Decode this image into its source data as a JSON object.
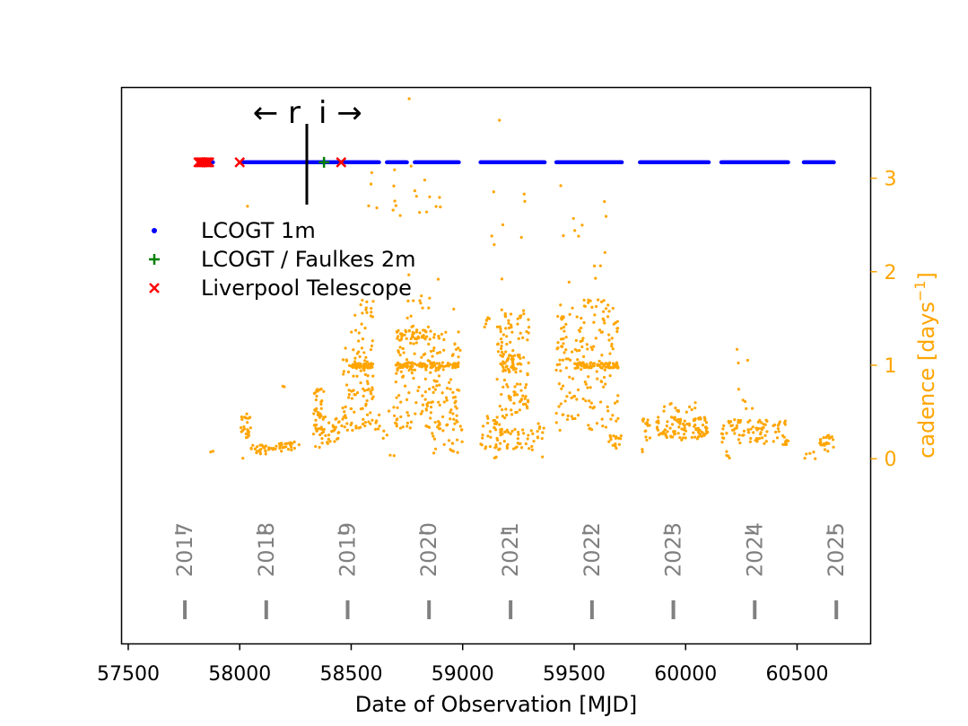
{
  "colors": {
    "lcogt_1m": "#0000ff",
    "faulkes_2m": "#008000",
    "liverpool": "#ff0000",
    "cadence": "#ffa500",
    "year": "#808080",
    "axis": "#000000"
  },
  "chart_data": {
    "type": "scatter",
    "xlabel": "Date of Observation [MJD]",
    "ylabel_right": "cadence [days",
    "ylabel_right_sup": "−1",
    "ylabel_right_end": "]",
    "xlim": [
      57470,
      60830
    ],
    "ylim_right": [
      -1.98,
      3.97
    ],
    "x_ticks": [
      57500,
      58000,
      58500,
      59000,
      59500,
      60000,
      60500
    ],
    "x_tick_labels": [
      "57500",
      "58000",
      "58500",
      "59000",
      "59500",
      "60000",
      "60500"
    ],
    "y_ticks_right": [
      0,
      1,
      2,
      3
    ],
    "y_tick_labels_right": [
      "0",
      "1",
      "2",
      "3"
    ],
    "legend": {
      "position": "center-left",
      "entries": [
        {
          "label": "LCOGT 1m",
          "marker": "dot",
          "color_key": "lcogt_1m"
        },
        {
          "label": "LCOGT / Faulkes 2m",
          "marker": "plus",
          "color_key": "faulkes_2m"
        },
        {
          "label": "Liverpool Telescope",
          "marker": "x",
          "color_key": "liverpool"
        }
      ]
    },
    "annotations": {
      "filter_switch_mjd": 58300,
      "left_label": "← r",
      "right_label": "i →"
    },
    "telescope_row_level": 3.17,
    "lcogt_1m_segments": [
      [
        57850,
        57880
      ],
      [
        58010,
        58625
      ],
      [
        58660,
        58750
      ],
      [
        58785,
        58985
      ],
      [
        59080,
        59370
      ],
      [
        59420,
        59715
      ],
      [
        59795,
        60105
      ],
      [
        60160,
        60460
      ],
      [
        60530,
        60665
      ]
    ],
    "faulkes_2m_points": [
      58378
    ],
    "liverpool_points": [
      57815,
      57822,
      57828,
      57835,
      57842,
      57850,
      57856,
      57863,
      58000,
      58455
    ],
    "years": [
      {
        "label": "2017",
        "mjd": 57754
      },
      {
        "label": "2018",
        "mjd": 58119
      },
      {
        "label": "2019",
        "mjd": 58484
      },
      {
        "label": "2020",
        "mjd": 58849
      },
      {
        "label": "2021",
        "mjd": 59215
      },
      {
        "label": "2022",
        "mjd": 59580
      },
      {
        "label": "2023",
        "mjd": 59945
      },
      {
        "label": "2024",
        "mjd": 60310
      },
      {
        "label": "2025",
        "mjd": 60676
      }
    ],
    "cadence_clusters": [
      {
        "x": [
          57850,
          57880
        ],
        "y": [
          0.06,
          0.1
        ],
        "n": 1
      },
      {
        "x": [
          58000,
          58050
        ],
        "y": [
          0.2,
          0.48
        ],
        "n": 25
      },
      {
        "x": [
          58000,
          58020
        ],
        "y": [
          0.0,
          0.02
        ],
        "n": 1
      },
      {
        "x": [
          58050,
          58150
        ],
        "y": [
          0.05,
          0.15
        ],
        "n": 25
      },
      {
        "x": [
          58150,
          58270
        ],
        "y": [
          0.08,
          0.18
        ],
        "n": 25
      },
      {
        "x": [
          58190,
          58215
        ],
        "y": [
          0.74,
          0.78
        ],
        "n": 1
      },
      {
        "x": [
          58330,
          58380
        ],
        "y": [
          0.3,
          0.75
        ],
        "n": 35
      },
      {
        "x": [
          58330,
          58380
        ],
        "y": [
          0.1,
          0.35
        ],
        "n": 15
      },
      {
        "x": [
          58380,
          58460
        ],
        "y": [
          0.15,
          0.45
        ],
        "n": 25
      },
      {
        "x": [
          58460,
          58600
        ],
        "y": [
          0.3,
          1.2
        ],
        "n": 90
      },
      {
        "x": [
          58500,
          58600
        ],
        "y": [
          0.97,
          1.02
        ],
        "n": 45
      },
      {
        "x": [
          58500,
          58600
        ],
        "y": [
          1.2,
          1.7
        ],
        "n": 22
      },
      {
        "x": [
          58600,
          58700
        ],
        "y": [
          0.0,
          0.6
        ],
        "n": 15
      },
      {
        "x": [
          58700,
          58990
        ],
        "y": [
          0.3,
          1.4
        ],
        "n": 170
      },
      {
        "x": [
          58700,
          58990
        ],
        "y": [
          0.97,
          1.03
        ],
        "n": 90
      },
      {
        "x": [
          58700,
          58850
        ],
        "y": [
          1.28,
          1.38
        ],
        "n": 40
      },
      {
        "x": [
          58750,
          58900
        ],
        "y": [
          1.4,
          2.0
        ],
        "n": 15
      },
      {
        "x": [
          58850,
          59000
        ],
        "y": [
          0.05,
          0.4
        ],
        "n": 25
      },
      {
        "x": [
          58550,
          58900
        ],
        "y": [
          2.6,
          3.15
        ],
        "n": 20
      },
      {
        "x": [
          59080,
          59170
        ],
        "y": [
          0.0,
          0.5
        ],
        "n": 35
      },
      {
        "x": [
          59080,
          59120
        ],
        "y": [
          1.4,
          1.52
        ],
        "n": 6
      },
      {
        "x": [
          59150,
          59300
        ],
        "y": [
          0.1,
          1.6
        ],
        "n": 140
      },
      {
        "x": [
          59180,
          59260
        ],
        "y": [
          0.92,
          1.12
        ],
        "n": 40
      },
      {
        "x": [
          59300,
          59370
        ],
        "y": [
          0.0,
          0.4
        ],
        "n": 15
      },
      {
        "x": [
          59080,
          59300
        ],
        "y": [
          1.8,
          3.0
        ],
        "n": 8
      },
      {
        "x": [
          59420,
          59700
        ],
        "y": [
          0.3,
          1.7
        ],
        "n": 170
      },
      {
        "x": [
          59500,
          59700
        ],
        "y": [
          0.97,
          1.03
        ],
        "n": 70
      },
      {
        "x": [
          59450,
          59650
        ],
        "y": [
          1.8,
          2.6
        ],
        "n": 10
      },
      {
        "x": [
          59650,
          59720
        ],
        "y": [
          0.1,
          0.25
        ],
        "n": 15
      },
      {
        "x": [
          59800,
          59850
        ],
        "y": [
          0.0,
          0.2
        ],
        "n": 3
      },
      {
        "x": [
          59800,
          60100
        ],
        "y": [
          0.2,
          0.45
        ],
        "n": 110
      },
      {
        "x": [
          59900,
          60050
        ],
        "y": [
          0.4,
          0.62
        ],
        "n": 15
      },
      {
        "x": [
          60150,
          60200
        ],
        "y": [
          0.0,
          0.1
        ],
        "n": 4
      },
      {
        "x": [
          60200,
          60300
        ],
        "y": [
          0.5,
          1.2
        ],
        "n": 8
      },
      {
        "x": [
          60160,
          60460
        ],
        "y": [
          0.15,
          0.42
        ],
        "n": 90
      },
      {
        "x": [
          60530,
          60600
        ],
        "y": [
          0.0,
          0.1
        ],
        "n": 5
      },
      {
        "x": [
          60600,
          60665
        ],
        "y": [
          0.08,
          0.25
        ],
        "n": 25
      }
    ],
    "cadence_points": [
      [
        57880,
        0.08
      ],
      [
        58035,
        2.7
      ],
      [
        58200,
        0.77
      ],
      [
        58760,
        3.85
      ],
      [
        59165,
        3.62
      ],
      [
        59440,
        2.92
      ],
      [
        59636,
        2.75
      ],
      [
        58960,
        1.6
      ],
      [
        59520,
        2.38
      ]
    ]
  }
}
